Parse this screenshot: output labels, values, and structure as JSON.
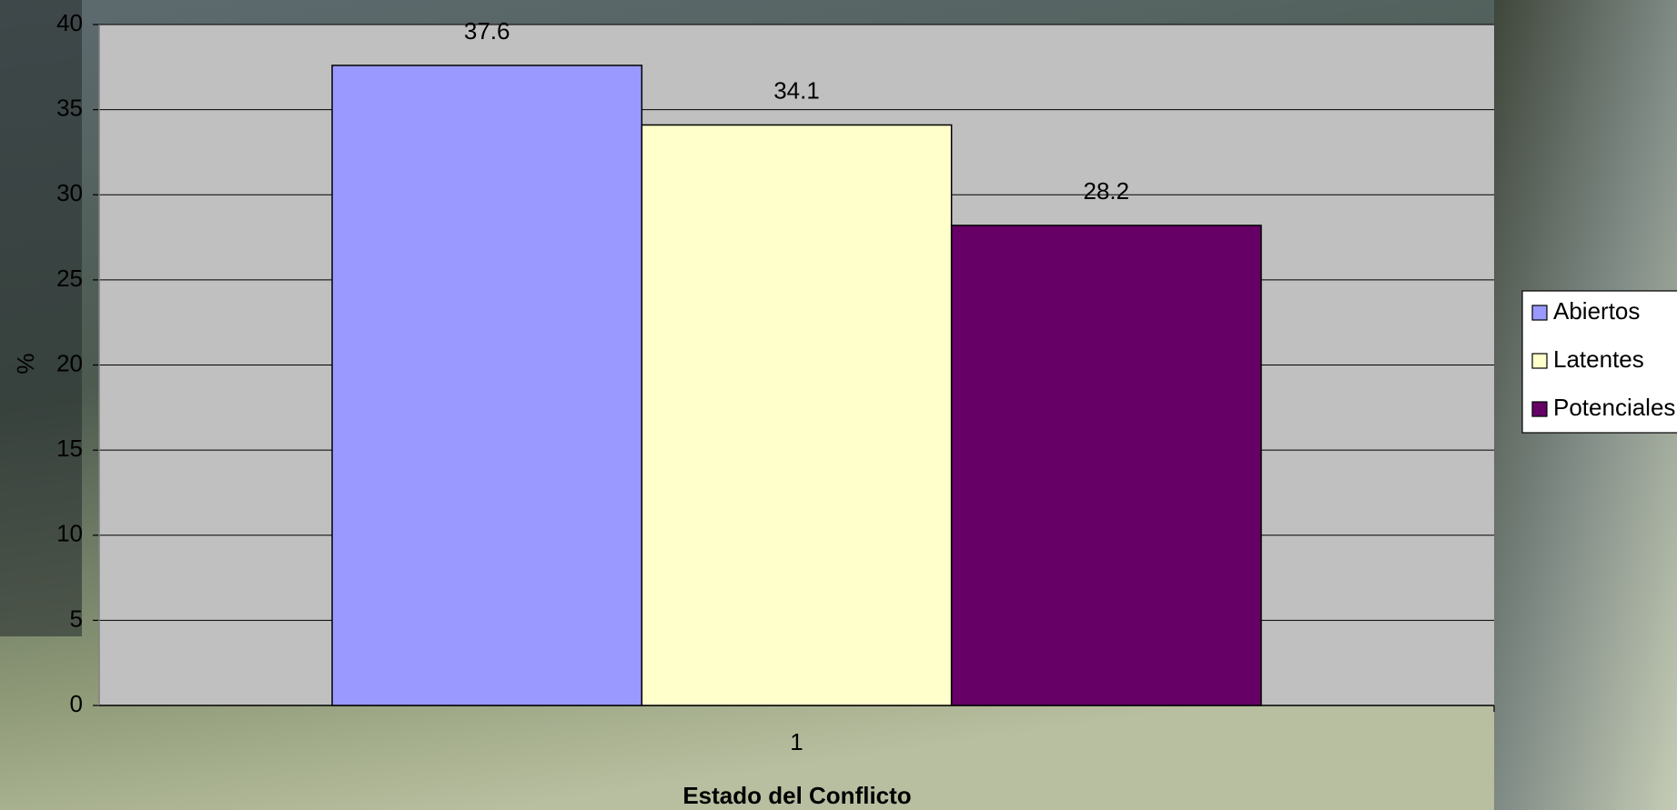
{
  "chart_data": {
    "type": "bar",
    "categories": [
      "1"
    ],
    "series": [
      {
        "name": "Abiertos",
        "color": "#9999ff",
        "values": [
          37.6
        ]
      },
      {
        "name": "Latentes",
        "color": "#ffffcc",
        "values": [
          34.1
        ]
      },
      {
        "name": "Potenciales",
        "color": "#660066",
        "values": [
          28.2
        ]
      }
    ],
    "ylim": [
      0,
      40
    ],
    "yticks": [
      0,
      5,
      10,
      15,
      20,
      25,
      30,
      35,
      40
    ],
    "y_label": "%",
    "x_label": "Estado del Conflicto",
    "grid": true,
    "legend": "right"
  }
}
